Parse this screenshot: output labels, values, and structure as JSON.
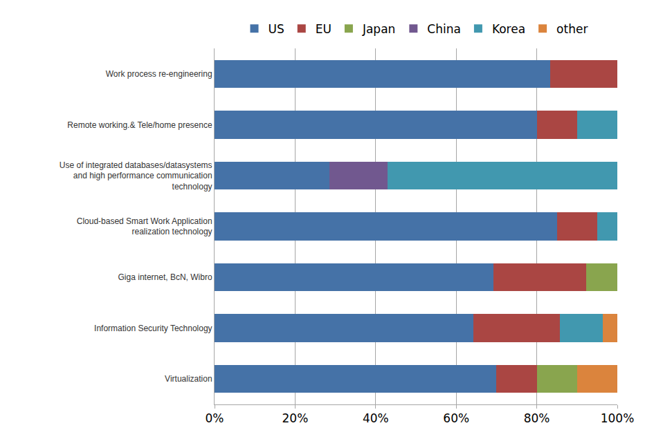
{
  "chart_data": {
    "type": "bar",
    "orientation": "horizontal",
    "stacked": true,
    "grid": true,
    "legend": "top",
    "categories": [
      "Work process re-engineering",
      "Remote working.& Tele/home presence",
      "Use of integrated databases/datasystems and high performance communication technology",
      "Cloud-based Smart Work Application realization technology",
      "Giga internet, BcN, Wibro",
      "Information Security Technology",
      "Virtualization"
    ],
    "series": [
      {
        "name": "US",
        "color": "#4572A7",
        "values": [
          83.3,
          80,
          28.6,
          85,
          69.2,
          64.3,
          70
        ]
      },
      {
        "name": "EU",
        "color": "#AA4643",
        "values": [
          16.7,
          10,
          0,
          10,
          23.1,
          21.4,
          10
        ]
      },
      {
        "name": "Japan",
        "color": "#89A54E",
        "values": [
          0,
          0,
          0,
          0,
          7.7,
          0,
          10
        ]
      },
      {
        "name": "China",
        "color": "#71588F",
        "values": [
          0,
          0,
          14.3,
          0,
          0,
          0,
          0
        ]
      },
      {
        "name": "Korea",
        "color": "#4198AF",
        "values": [
          0,
          10,
          57.1,
          5,
          0,
          10.7,
          0
        ]
      },
      {
        "name": "other",
        "color": "#DB843D",
        "values": [
          0,
          0,
          0,
          0,
          0,
          3.6,
          10
        ]
      }
    ],
    "xlim": [
      0,
      100
    ],
    "xticks": [
      {
        "value": 0,
        "label": "0%"
      },
      {
        "value": 20,
        "label": "20%"
      },
      {
        "value": 40,
        "label": "40%"
      },
      {
        "value": 60,
        "label": "60%"
      },
      {
        "value": 80,
        "label": "80%"
      },
      {
        "value": 100,
        "label": "100%"
      }
    ]
  }
}
